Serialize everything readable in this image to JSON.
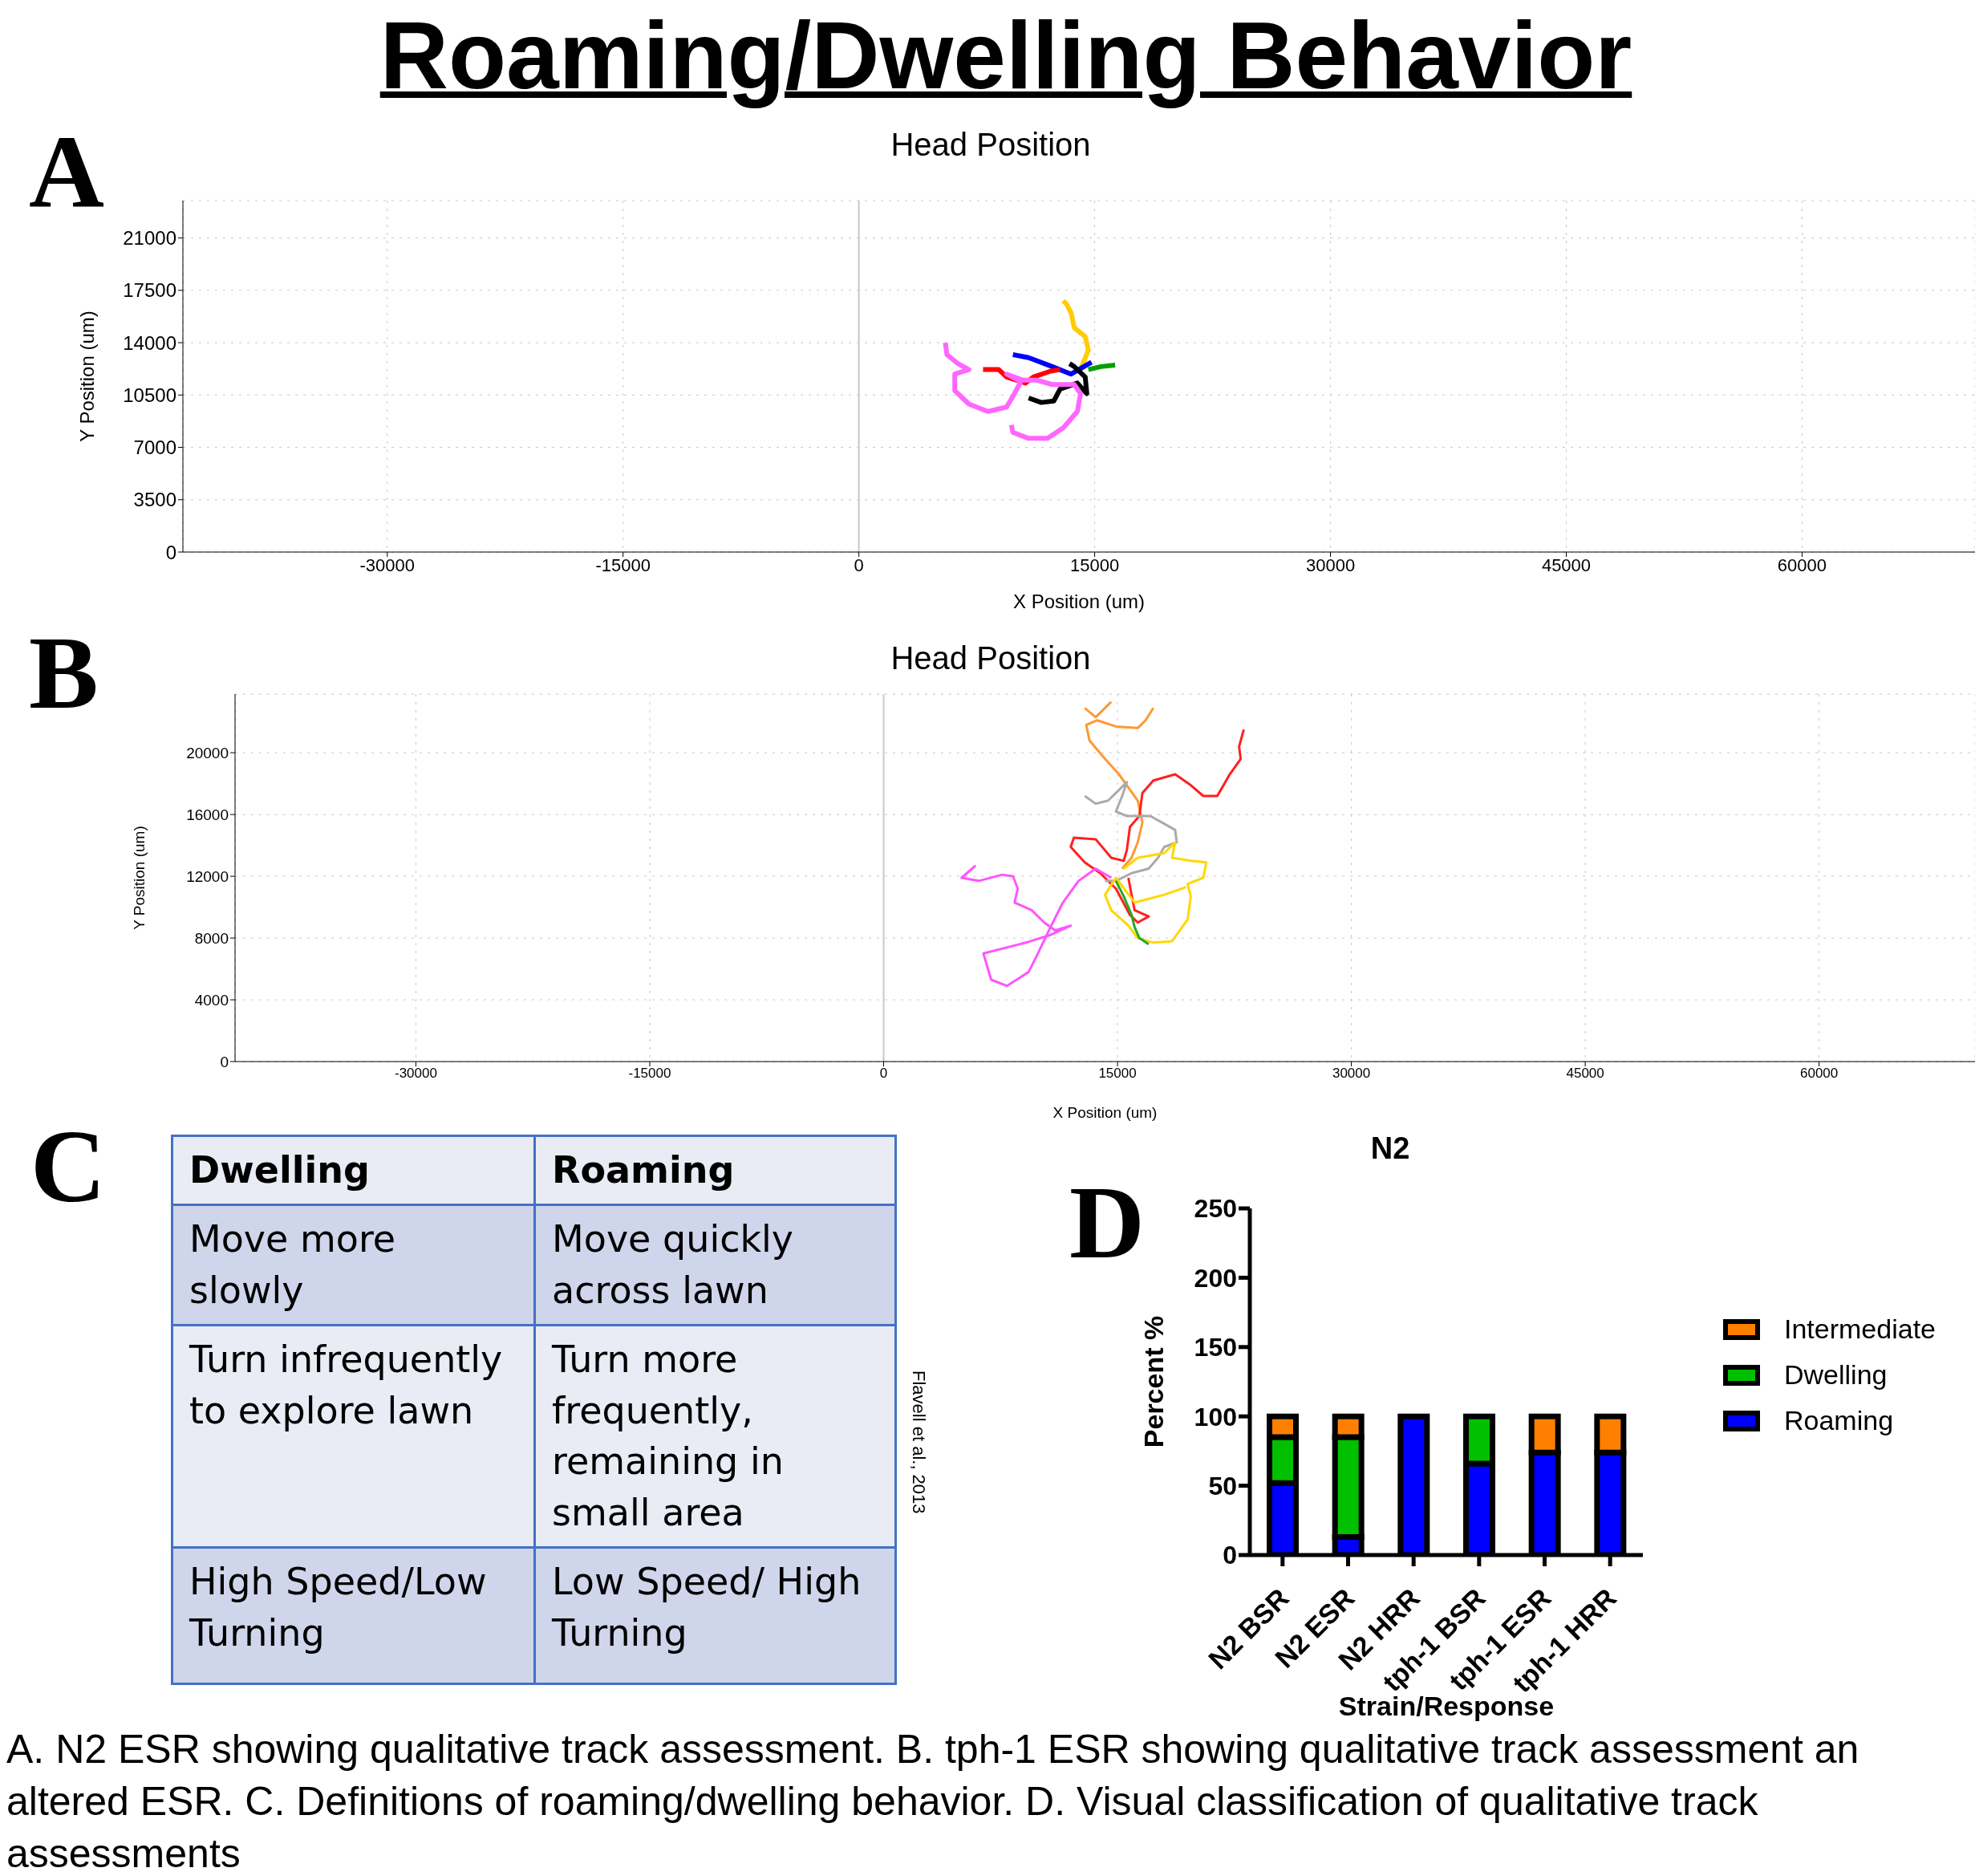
{
  "chart_data": [
    {
      "type": "other",
      "title": "Roaming/Dwelling Behavior"
    },
    {
      "type": "line",
      "title": "Head Position",
      "xlabel": "X Position (um)",
      "ylabel": "Y Position (um)",
      "annotations": [
        "A"
      ],
      "xlim": [
        -43000,
        71000
      ],
      "xticks": [
        -30000,
        -15000,
        0,
        15000,
        30000,
        45000,
        60000
      ],
      "ylim": [
        0,
        23500
      ],
      "yticks": [
        0,
        3500,
        7000,
        10500,
        14000,
        17500,
        21000
      ],
      "grid": true,
      "ref_lines": [
        {
          "axis": "x",
          "value": 0,
          "color": "#c8c8c8"
        }
      ],
      "series": [
        {
          "color": "#ffcc00",
          "x": [
            14100,
            14600,
            14400,
            13700,
            13500,
            13200,
            13000
          ],
          "values": [
            12200,
            13500,
            14400,
            15000,
            16000,
            16600,
            16800
          ]
        },
        {
          "color": "#0000ff",
          "x": [
            9800,
            10800,
            12300,
            13500,
            14800
          ],
          "values": [
            13200,
            13000,
            12400,
            11900,
            12700
          ]
        },
        {
          "color": "#00a000",
          "x": [
            14600,
            15400,
            16300
          ],
          "values": [
            12200,
            12400,
            12500
          ]
        },
        {
          "color": "#ff0000",
          "x": [
            7900,
            8900,
            9400,
            10600,
            11100,
            12200,
            12800
          ],
          "values": [
            12200,
            12200,
            11700,
            11300,
            11700,
            12100,
            12200
          ]
        },
        {
          "color": "#000000",
          "x": [
            10800,
            11600,
            12400,
            12800,
            13900,
            14500,
            14400,
            13700,
            13400
          ],
          "values": [
            10300,
            10000,
            10100,
            10900,
            11300,
            10600,
            11700,
            12400,
            12600
          ]
        },
        {
          "color": "#ff66ff",
          "x": [
            5500,
            5600,
            6300,
            7000,
            6100,
            6100,
            7000,
            8200,
            9400,
            9900,
            10300,
            9400,
            10400,
            11300,
            12300,
            13700,
            14100,
            13900,
            13000,
            12000,
            10800,
            9800,
            9700
          ],
          "values": [
            14000,
            13200,
            12600,
            12200,
            11900,
            10800,
            9900,
            9400,
            9700,
            10600,
            11400,
            11900,
            11500,
            11500,
            11200,
            11200,
            10600,
            9400,
            8300,
            7600,
            7600,
            8000,
            8500
          ]
        }
      ]
    },
    {
      "type": "line",
      "title": "Head Position",
      "xlabel": "X Position (um)",
      "ylabel": "Y Position (um)",
      "annotations": [
        "B"
      ],
      "xlim": [
        -41600,
        70000
      ],
      "xticks": [
        -30000,
        -15000,
        0,
        15000,
        30000,
        45000,
        60000
      ],
      "ylim": [
        0,
        23800
      ],
      "yticks": [
        0,
        4000,
        8000,
        12000,
        16000,
        20000
      ],
      "grid": true,
      "ref_lines": [
        {
          "axis": "x",
          "value": 0,
          "color": "#c8c8c8"
        }
      ],
      "series": [
        {
          "color": "#ff9933",
          "x": [
            12900,
            13600,
            14600,
            15400,
            17000,
            17300,
            16800,
            16300,
            14900,
            13700,
            13000,
            13200,
            14200,
            15100,
            16300,
            16600,
            16300,
            15900,
            15300
          ],
          "values": [
            22900,
            22300,
            23300,
            null,
            null,
            22900,
            22100,
            21600,
            21700,
            22100,
            21800,
            20800,
            19600,
            18600,
            16900,
            15500,
            14200,
            13200,
            12500
          ]
        },
        {
          "color": "#ff2020",
          "x": [
            23100,
            22800,
            22900,
            22200,
            21400,
            20500,
            19700,
            18700,
            17300,
            16600,
            16400,
            15800,
            15600,
            15400,
            14600,
            13600,
            12200,
            12000,
            12900,
            13900,
            14900,
            15800,
            16300,
            17000,
            16100,
            15900,
            15700
          ],
          "values": [
            21500,
            20400,
            19600,
            18600,
            17200,
            17200,
            17900,
            18600,
            18200,
            17400,
            15900,
            15200,
            13700,
            13000,
            13200,
            14400,
            14500,
            13900,
            12900,
            12200,
            11200,
            9500,
            9000,
            9400,
            9800,
            10800,
            11900
          ]
        },
        {
          "color": "#aaaaaa",
          "x": [
            12900,
            13600,
            14400,
            15100,
            15600,
            15300,
            14900,
            15600,
            17100,
            18000,
            18700,
            18800,
            18000,
            17600,
            17000,
            15900,
            14900,
            14200
          ],
          "values": [
            17200,
            16700,
            16900,
            17600,
            18100,
            17200,
            16200,
            15900,
            15900,
            15400,
            15000,
            14200,
            13900,
            13200,
            12500,
            12200,
            11700,
            11700
          ]
        },
        {
          "color": "#ffd700",
          "x": [
            15400,
            16300,
            18000,
            18700,
            18500,
            19700,
            20700,
            20500,
            19500,
            19700,
            19500,
            18500,
            17300,
            16300,
            15700,
            14600,
            14200,
            14900,
            16100,
            18000,
            19400
          ],
          "values": [
            12500,
            13200,
            13500,
            14200,
            13200,
            13000,
            12900,
            11900,
            11500,
            10700,
            9200,
            7800,
            7700,
            8000,
            8800,
            9800,
            10800,
            11900,
            10300,
            10800,
            11300
          ]
        },
        {
          "color": "#22aa22",
          "x": [
            14900,
            15400,
            15900,
            16100,
            16400,
            17000
          ],
          "values": [
            11700,
            10700,
            9500,
            8700,
            8000,
            7600
          ]
        },
        {
          "color": "#ff55ff",
          "x": [
            5900,
            5000,
            6100,
            7600,
            8300,
            8600,
            8400,
            9500,
            10300,
            11000,
            12000,
            10700,
            9100,
            6400,
            6900,
            7900,
            9300,
            9800,
            10700,
            11500,
            12500,
            13600,
            14600
          ],
          "values": [
            12700,
            11900,
            11700,
            12100,
            12000,
            11200,
            10300,
            9800,
            9000,
            8500,
            8800,
            8200,
            7700,
            7000,
            5300,
            4900,
            5800,
            6800,
            8700,
            10300,
            11700,
            12500,
            11900
          ]
        }
      ]
    },
    {
      "type": "other",
      "categories": [
        "Dwelling",
        "Roaming"
      ],
      "annotations": [
        "C",
        "Move more slowly",
        "Move quickly across lawn",
        "Turn infrequently to explore lawn",
        "Turn more frequently, remaining in small area",
        "High Speed/Low Turning",
        "Low Speed/ High Turning",
        "Flavell et al., 2013"
      ]
    },
    {
      "type": "bar",
      "title": "N2",
      "xlabel": "Strain/Response",
      "ylabel": "Percent %",
      "annotations": [
        "D"
      ],
      "categories": [
        "N2 BSR",
        "N2 ESR",
        "N2 HRR",
        "tph-1 BSR",
        "tph-1 ESR",
        "tph-1 HRR"
      ],
      "stacked": true,
      "ylim": [
        0,
        250
      ],
      "yticks": [
        0,
        50,
        100,
        150,
        200,
        250
      ],
      "legend": "right",
      "series": [
        {
          "name": "Roaming",
          "color": "#0000ff",
          "values": [
            52,
            13,
            100,
            66,
            74,
            74
          ]
        },
        {
          "name": "Dwelling",
          "color": "#00c000",
          "values": [
            33,
            72,
            0,
            34,
            0,
            0
          ]
        },
        {
          "name": "Intermediate",
          "color": "#ff8000",
          "values": [
            15,
            15,
            0,
            0,
            26,
            26
          ]
        }
      ]
    },
    {
      "type": "other",
      "annotations": [
        "A. N2 ESR showing qualitative track assessment. B. tph-1 ESR showing qualitative track assessment an altered ESR. C. Definitions of roaming/dwelling behavior. D. Visual classification of qualitative track assessments"
      ]
    }
  ]
}
